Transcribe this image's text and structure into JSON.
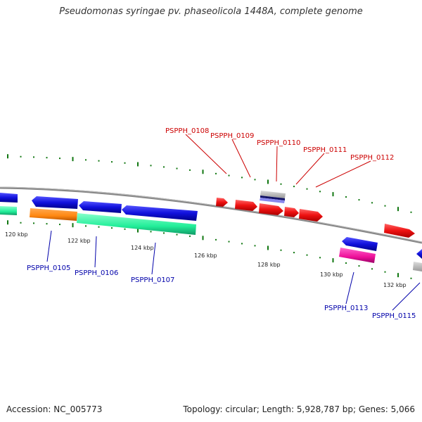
{
  "title": "Pseudomonas syringae pv. phaseolicola 1448A, complete genome",
  "footer": {
    "accession": "Accession: NC_005773",
    "topology": "Topology: circular; Length: 5,928,787 bp; Genes: 5,066"
  },
  "scale_labels": [
    "120 kbp",
    "122 kbp",
    "124 kbp",
    "126 kbp",
    "128 kbp",
    "130 kbp",
    "132 kbp"
  ],
  "gene_tags_forward": [
    "PSPPH_0108",
    "PSPPH_0109",
    "PSPPH_0110",
    "PSPPH_0111",
    "PSPPH_0112"
  ],
  "gene_tags_reverse": [
    "PSPPH_0105",
    "PSPPH_0106",
    "PSPPH_0107",
    "PSPPH_0113",
    "PSPPH_0115"
  ],
  "colors": {
    "forward_gene": "#ee1111",
    "reverse_gene": "#1111dd",
    "rna_green": "#22ee99",
    "orange": "#ff8811",
    "magenta": "#ee1199",
    "backbone": "#888888",
    "gc_skew_ticks": "#117711",
    "forward_tag": "#cc0000",
    "reverse_tag": "#0000aa"
  }
}
